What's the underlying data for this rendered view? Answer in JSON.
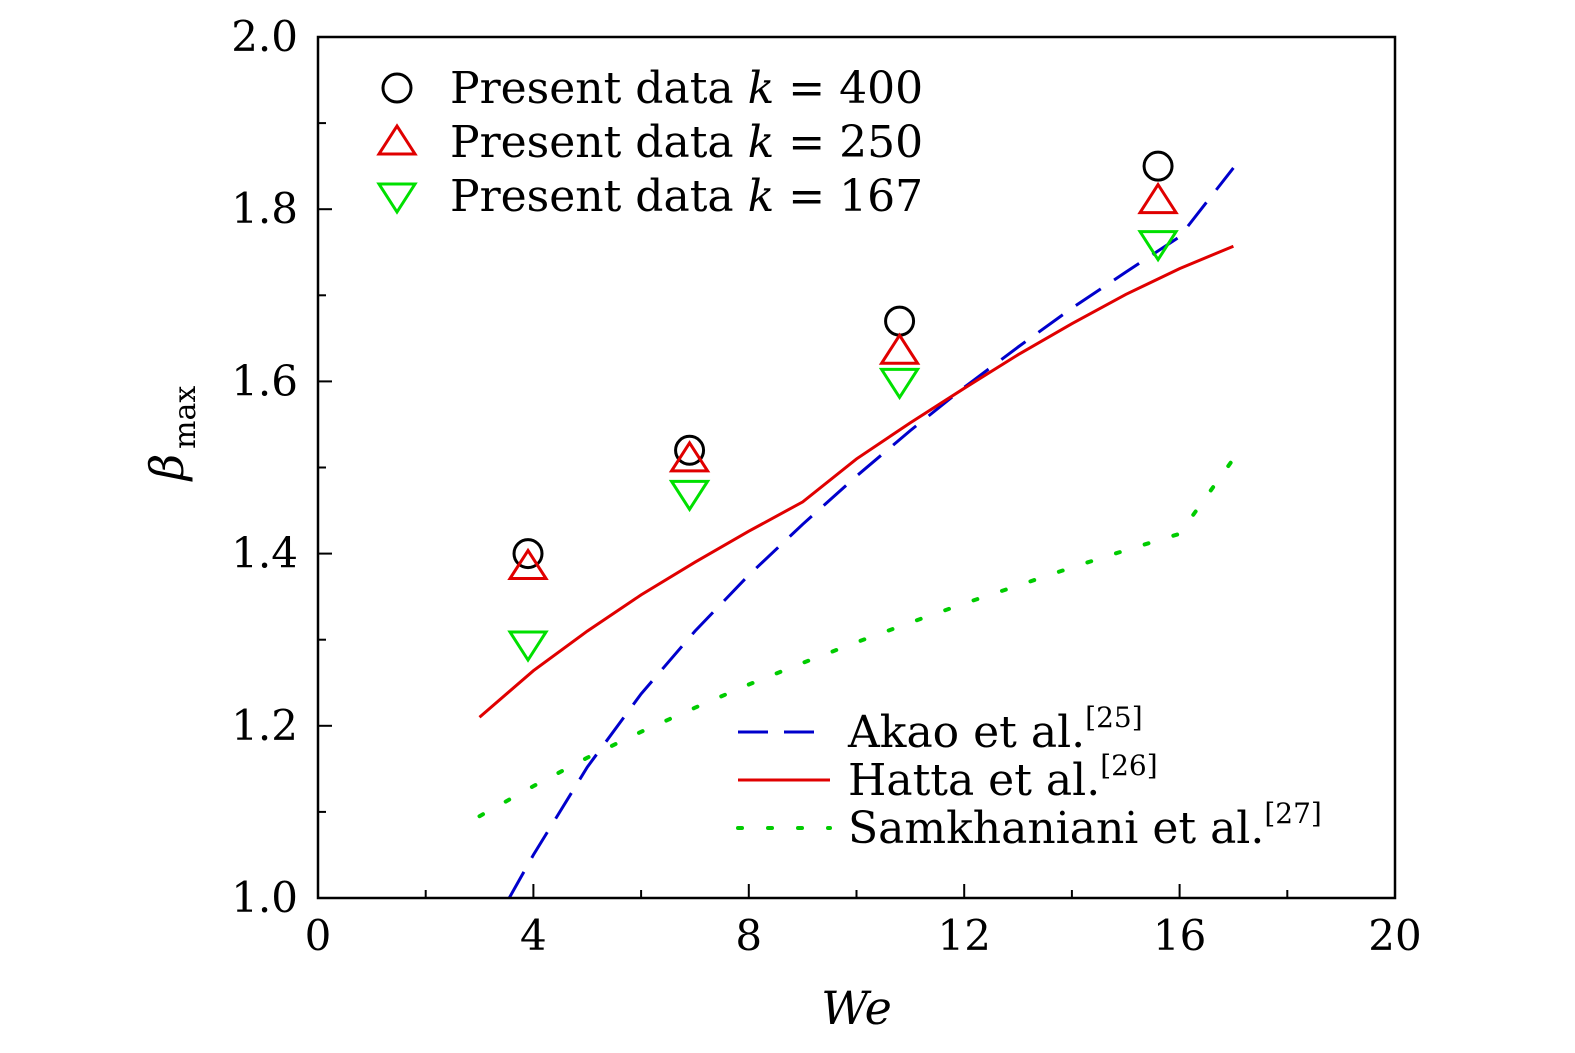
{
  "chart_data": {
    "type": "scatter",
    "xlabel": "We",
    "ylabel": "β",
    "ylabel_subscript": "max",
    "xlim": [
      0,
      20
    ],
    "ylim": [
      1.0,
      2.0
    ],
    "x_ticks": [
      0,
      4,
      8,
      12,
      16,
      20
    ],
    "y_ticks": [
      1.0,
      1.2,
      1.4,
      1.6,
      1.8,
      2.0
    ],
    "x_tick_labels": [
      "0",
      "4",
      "8",
      "12",
      "16",
      "20"
    ],
    "y_tick_labels": [
      "1.0",
      "1.2",
      "1.4",
      "1.6",
      "1.8",
      "2.0"
    ],
    "grid": false,
    "scatter_series": [
      {
        "name": "Present data k = 400",
        "label_main": "Present data ",
        "label_var": "k",
        "label_rest": " = 400",
        "marker": "circle",
        "color": "#000000",
        "x": [
          3.9,
          6.9,
          10.8,
          15.6
        ],
        "y": [
          1.4,
          1.52,
          1.67,
          1.85
        ]
      },
      {
        "name": "Present data k = 250",
        "label_main": "Present data ",
        "label_var": "k",
        "label_rest": " = 250",
        "marker": "triangle-up",
        "color": "#e00000",
        "x": [
          3.9,
          6.9,
          10.8,
          15.6
        ],
        "y": [
          1.385,
          1.51,
          1.635,
          1.81
        ]
      },
      {
        "name": "Present data k = 167",
        "label_main": "Present data ",
        "label_var": "k",
        "label_rest": " = 167",
        "marker": "triangle-down",
        "color": "#00e000",
        "x": [
          3.9,
          6.9,
          10.8,
          15.6
        ],
        "y": [
          1.295,
          1.47,
          1.6,
          1.76
        ]
      }
    ],
    "line_series": [
      {
        "name": "Akao et al.[25]",
        "label_main": "Akao et al.",
        "label_sup": "[25]",
        "style": "dashed",
        "color": "#0000cc",
        "x": [
          3.55,
          4,
          5,
          6,
          7,
          8,
          9,
          10,
          11,
          12,
          13,
          14,
          15,
          16,
          17
        ],
        "y": [
          1.0,
          1.05,
          1.152,
          1.237,
          1.31,
          1.375,
          1.434,
          1.49,
          1.543,
          1.593,
          1.64,
          1.685,
          1.727,
          1.768,
          1.848
        ]
      },
      {
        "name": "Hatta et al.[26]",
        "label_main": "Hatta et al.",
        "label_sup": "[26]",
        "style": "solid",
        "color": "#e00000",
        "x": [
          3,
          4,
          5,
          6,
          7,
          8,
          9,
          10,
          11,
          12,
          13,
          14,
          15,
          16,
          17
        ],
        "y": [
          1.21,
          1.264,
          1.31,
          1.352,
          1.39,
          1.426,
          1.46,
          1.51,
          1.552,
          1.592,
          1.631,
          1.667,
          1.701,
          1.731,
          1.757
        ]
      },
      {
        "name": "Samkhaniani et al.[27]",
        "label_main": "Samkhaniani et al.",
        "label_sup": "[27]",
        "style": "dotted",
        "color": "#00cc00",
        "x": [
          3,
          4,
          5,
          6,
          7,
          8,
          9,
          10,
          11,
          12,
          13,
          14,
          15,
          16,
          17
        ],
        "y": [
          1.095,
          1.13,
          1.163,
          1.193,
          1.221,
          1.248,
          1.273,
          1.297,
          1.32,
          1.342,
          1.363,
          1.384,
          1.404,
          1.423,
          1.51
        ]
      }
    ],
    "legend_placement": [
      "top-left",
      "bottom-right"
    ]
  }
}
